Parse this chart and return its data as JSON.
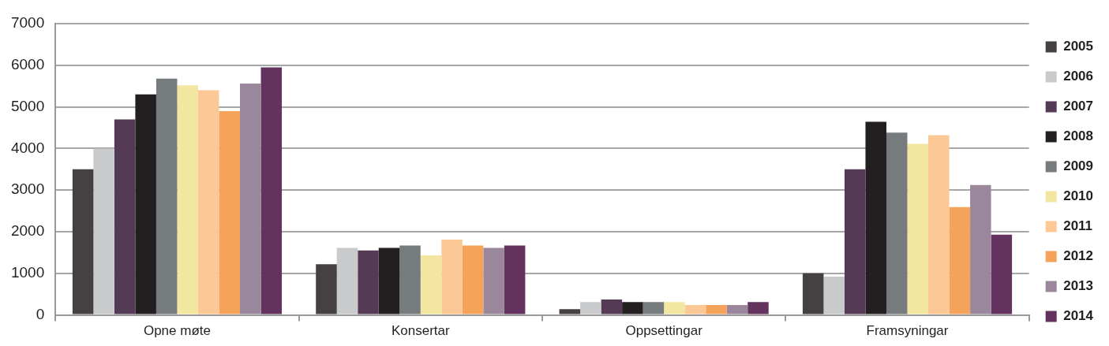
{
  "chart_data": {
    "type": "bar",
    "categories": [
      "Opne møte",
      "Konsertar",
      "Oppsettingar",
      "Framsyningar"
    ],
    "series": [
      {
        "name": "2005",
        "color": "#454042",
        "values": [
          3500,
          1220,
          140,
          1000
        ]
      },
      {
        "name": "2006",
        "color": "#c8cacb",
        "values": [
          4000,
          1610,
          310,
          920
        ]
      },
      {
        "name": "2007",
        "color": "#553a55",
        "values": [
          4700,
          1550,
          370,
          3500
        ]
      },
      {
        "name": "2008",
        "color": "#231f20",
        "values": [
          5300,
          1610,
          310,
          4640
        ]
      },
      {
        "name": "2009",
        "color": "#767b7e",
        "values": [
          5680,
          1670,
          310,
          4380
        ]
      },
      {
        "name": "2010",
        "color": "#f2e6a0",
        "values": [
          5520,
          1430,
          310,
          4110
        ]
      },
      {
        "name": "2011",
        "color": "#fbc896",
        "values": [
          5400,
          1810,
          240,
          4320
        ]
      },
      {
        "name": "2012",
        "color": "#f5a25b",
        "values": [
          4900,
          1670,
          240,
          2590
        ]
      },
      {
        "name": "2013",
        "color": "#9a879c",
        "values": [
          5560,
          1610,
          240,
          3120
        ]
      },
      {
        "name": "2014",
        "color": "#63325e",
        "values": [
          5950,
          1670,
          310,
          1930
        ]
      }
    ],
    "ylim": [
      0,
      7000
    ],
    "yticks": [
      0,
      1000,
      2000,
      3000,
      4000,
      5000,
      6000,
      7000
    ],
    "grid": "y",
    "legend": "right"
  }
}
